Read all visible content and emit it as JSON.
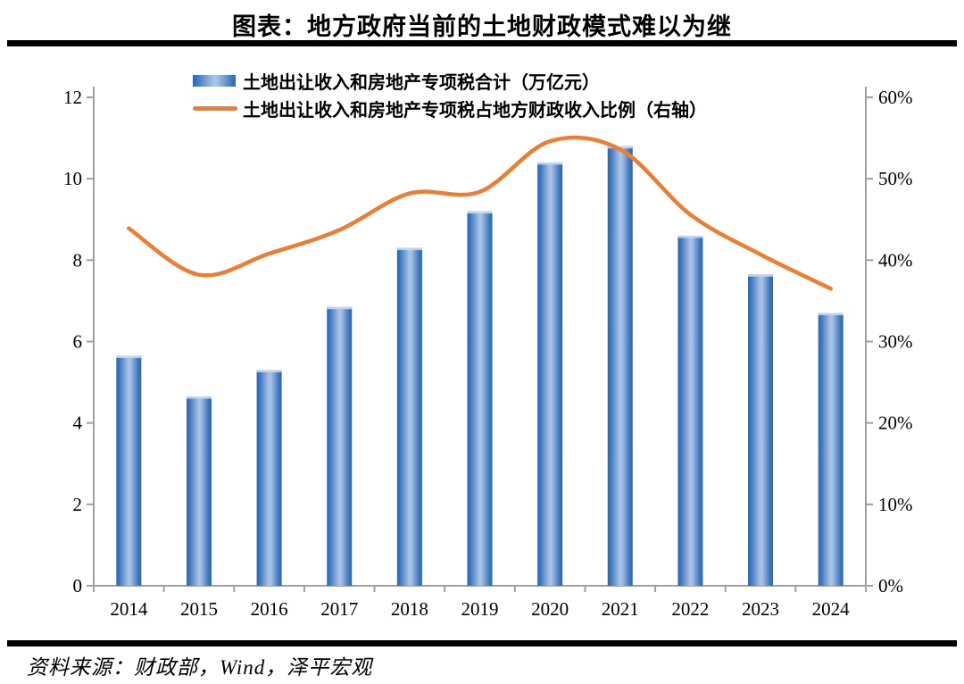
{
  "header": {
    "title": "图表：地方政府当前的土地财政模式难以为继"
  },
  "legend": {
    "bars_label": "土地出让收入和房地产专项税合计（万亿元）",
    "line_label": "土地出让收入和房地产专项税占地方财政收入比例（右轴）"
  },
  "footer": {
    "source": "资料来源：财政部，Wind，泽平宏观"
  },
  "colors": {
    "bar_edge": "#2a66b3",
    "bar_mid": "#a7c2e6",
    "bar_cap": "#c9d9ee",
    "line": "#ED7D31",
    "axis": "#a0a0a0",
    "text": "#000000",
    "rule": "#000000"
  },
  "chart_data": {
    "type": "bar+line combo",
    "title": "图表：地方政府当前的土地财政模式难以为继",
    "categories": [
      "2014",
      "2015",
      "2016",
      "2017",
      "2018",
      "2019",
      "2020",
      "2021",
      "2022",
      "2023",
      "2024"
    ],
    "series": [
      {
        "name": "土地出让收入和房地产专项税合计（万亿元）",
        "type": "bar",
        "axis": "left",
        "unit": "万亿元",
        "values": [
          5.65,
          4.65,
          5.3,
          6.85,
          8.3,
          9.2,
          10.4,
          10.8,
          8.6,
          7.65,
          6.7
        ]
      },
      {
        "name": "土地出让收入和房地产专项税占地方财政收入比例（右轴）",
        "type": "line",
        "axis": "right",
        "unit": "%",
        "values": [
          43.9,
          38.2,
          40.8,
          43.7,
          48.2,
          48.4,
          54.6,
          53.6,
          45.6,
          40.7,
          36.5
        ]
      }
    ],
    "left_axis": {
      "min": 0,
      "max": 12,
      "step": 2,
      "ticks": [
        "0",
        "2",
        "4",
        "6",
        "8",
        "10",
        "12"
      ]
    },
    "right_axis": {
      "min": 0,
      "max": 60,
      "step": 10,
      "ticks": [
        "0%",
        "10%",
        "20%",
        "30%",
        "40%",
        "50%",
        "60%"
      ]
    },
    "grid": false,
    "legend_position": "top",
    "line_smooth": true
  }
}
